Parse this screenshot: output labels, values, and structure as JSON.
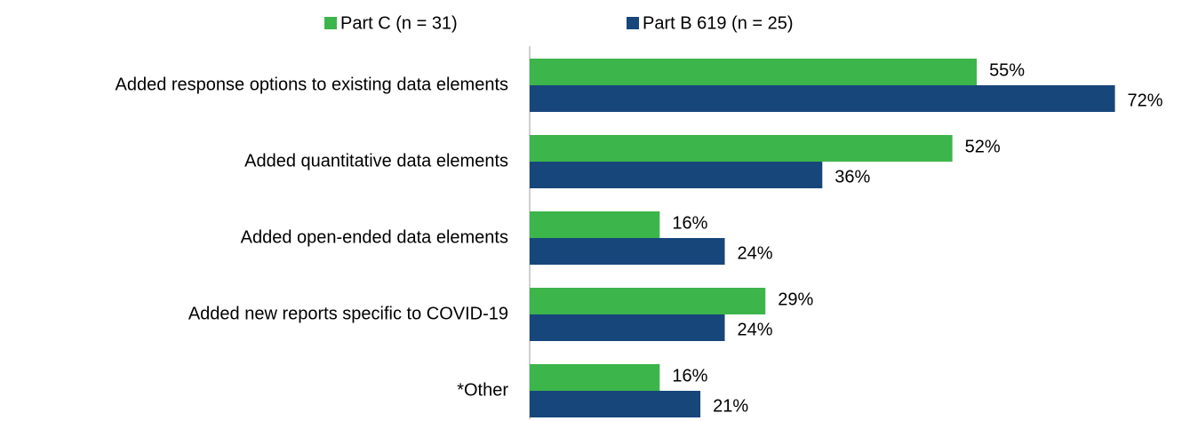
{
  "chart_data": {
    "type": "hbar",
    "categories": [
      "Added response options to existing data elements",
      "Added quantitative data elements",
      "Added open-ended data elements",
      "Added new reports specific to COVID-19",
      "*Other"
    ],
    "series": [
      {
        "name": "Part C (n = 31)",
        "color": "#3cb54a",
        "values": [
          55,
          52,
          16,
          29,
          16
        ],
        "value_labels": [
          "55%",
          "52%",
          "16%",
          "29%",
          "16%"
        ]
      },
      {
        "name": "Part B 619 (n = 25)",
        "color": "#17467b",
        "values": [
          72,
          36,
          24,
          24,
          21
        ],
        "value_labels": [
          "72%",
          "36%",
          "24%",
          "24%",
          "21%"
        ]
      }
    ],
    "xlim": [
      0,
      75
    ],
    "legend": "top"
  }
}
